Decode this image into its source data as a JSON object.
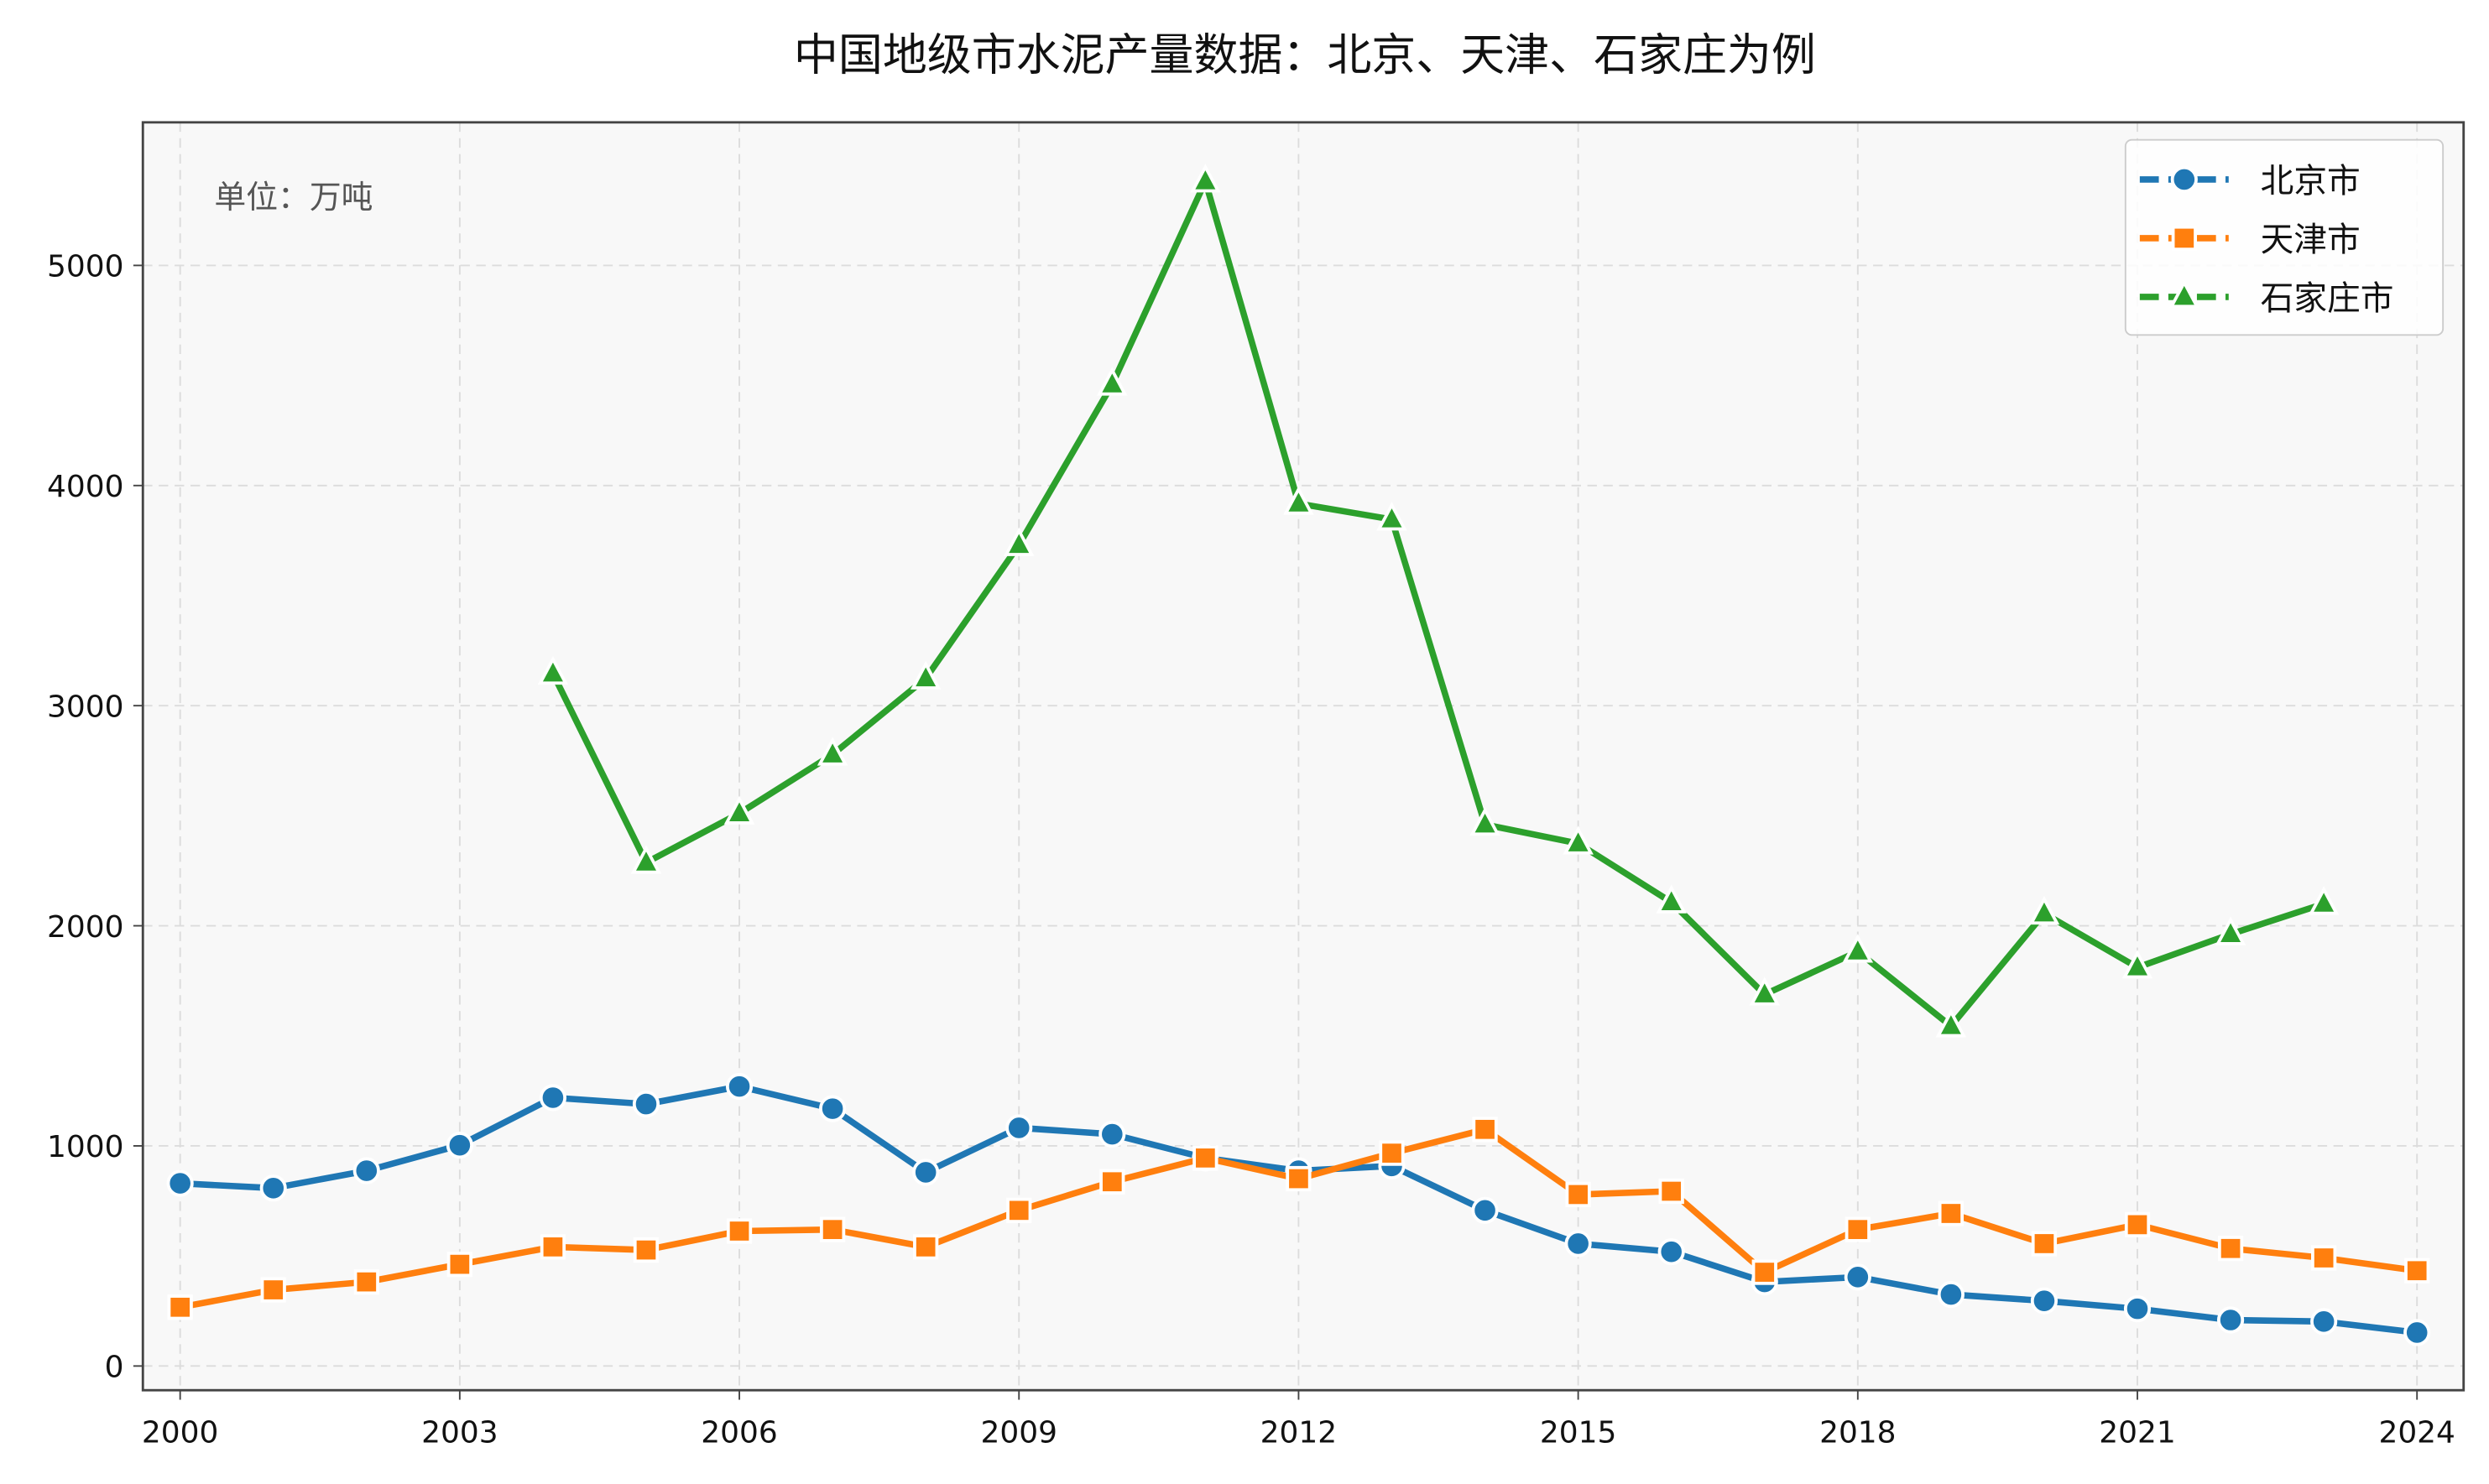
{
  "chart_data": {
    "type": "line",
    "title": "中国地级市水泥产量数据：北京、天津、石家庄为例",
    "annotation": "单位：万吨",
    "xlabel": "",
    "ylabel": "",
    "x": [
      2000,
      2001,
      2002,
      2003,
      2004,
      2005,
      2006,
      2007,
      2008,
      2009,
      2010,
      2011,
      2012,
      2013,
      2014,
      2015,
      2016,
      2017,
      2018,
      2019,
      2020,
      2021,
      2022,
      2023,
      2024
    ],
    "xlim": [
      1999.6,
      2024.5
    ],
    "ylim": [
      -110,
      5650
    ],
    "xticks": [
      2000,
      2003,
      2006,
      2009,
      2012,
      2015,
      2018,
      2021,
      2024
    ],
    "yticks": [
      0,
      1000,
      2000,
      3000,
      4000,
      5000
    ],
    "grid": true,
    "legend_position": "top-right",
    "series": [
      {
        "name": "北京市",
        "color": "#1f77b4",
        "marker": "circle",
        "values": [
          830,
          808,
          887,
          1003,
          1219,
          1190,
          1270,
          1169,
          880,
          1082,
          1053,
          945,
          887,
          909,
          707,
          556,
          519,
          382,
          404,
          325,
          296,
          260,
          209,
          202,
          152
        ]
      },
      {
        "name": "天津市",
        "color": "#ff7f0e",
        "marker": "square",
        "values": [
          267,
          346,
          382,
          462,
          541,
          527,
          613,
          620,
          541,
          707,
          837,
          945,
          851,
          967,
          1075,
          779,
          794,
          426,
          620,
          693,
          556,
          642,
          534,
          491,
          433
        ]
      },
      {
        "name": "石家庄市",
        "color": "#2ca02c",
        "marker": "triangle",
        "values": [
          null,
          null,
          null,
          null,
          3146,
          2287,
          2511,
          2778,
          3124,
          3730,
          4459,
          5382,
          3918,
          3846,
          2460,
          2374,
          2107,
          1688,
          1883,
          1544,
          2056,
          1811,
          1962,
          2100,
          null
        ]
      }
    ]
  }
}
